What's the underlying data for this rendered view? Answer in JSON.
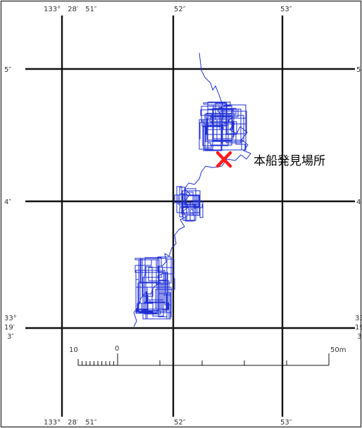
{
  "map": {
    "top_longitude_labels": [
      "133°　28′　51″",
      "52″",
      "53″"
    ],
    "bottom_longitude_labels": [
      "133°　28′　51″",
      "52″",
      "53″"
    ],
    "left_latitude_labels": [
      "5″",
      "4″"
    ],
    "right_latitude_labels": [
      "5",
      "4"
    ],
    "base_latitude_left": [
      "33°",
      "19′",
      "3″"
    ],
    "base_latitude_right": [
      "33",
      "19",
      "3"
    ],
    "found_location": {
      "label": "本船発見場所",
      "marker_color": "#ff1a1a"
    },
    "track": {
      "color": "#1f2fd6"
    }
  },
  "scale_bar": {
    "left_label": "10",
    "zero_label": "0",
    "right_label": "50m"
  }
}
